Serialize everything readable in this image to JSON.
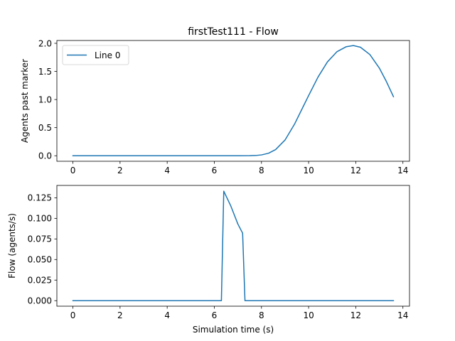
{
  "chart_data": [
    {
      "type": "line",
      "title": "firstTest111 - Flow",
      "xlabel": "",
      "ylabel": "Agents past marker",
      "xlim": [
        -0.68,
        14.28
      ],
      "ylim": [
        -0.098,
        2.05
      ],
      "xticks": [
        0,
        2,
        4,
        6,
        8,
        10,
        12,
        14
      ],
      "yticks": [
        0.0,
        0.5,
        1.0,
        1.5,
        2.0
      ],
      "xtick_labels": [
        "0",
        "2",
        "4",
        "6",
        "8",
        "10",
        "12",
        "14"
      ],
      "ytick_labels": [
        "0.0",
        "0.5",
        "1.0",
        "1.5",
        "2.0"
      ],
      "grid": false,
      "legend": {
        "position": "top-left",
        "entries": [
          "Line 0"
        ]
      },
      "series": [
        {
          "name": "Line 0",
          "color": "#1f77b4",
          "x": [
            0,
            1,
            2,
            3,
            4,
            5,
            6,
            6.4,
            7,
            7.5,
            7.8,
            8.0,
            8.3,
            8.6,
            9.0,
            9.4,
            9.8,
            10.0,
            10.4,
            10.8,
            11.2,
            11.6,
            11.9,
            12.2,
            12.6,
            13.0,
            13.3,
            13.6
          ],
          "y": [
            0,
            0,
            0,
            0,
            0,
            0,
            0,
            0,
            0,
            0.002,
            0.007,
            0.015,
            0.045,
            0.11,
            0.28,
            0.56,
            0.9,
            1.07,
            1.4,
            1.67,
            1.85,
            1.94,
            1.96,
            1.93,
            1.8,
            1.56,
            1.32,
            1.05
          ]
        }
      ]
    },
    {
      "type": "line",
      "title": "",
      "xlabel": "Simulation time (s)",
      "ylabel": "Flow (agents/s)",
      "xlim": [
        -0.68,
        14.28
      ],
      "ylim": [
        -0.0067,
        0.14
      ],
      "xticks": [
        0,
        2,
        4,
        6,
        8,
        10,
        12,
        14
      ],
      "yticks": [
        0.0,
        0.025,
        0.05,
        0.075,
        0.1,
        0.125
      ],
      "xtick_labels": [
        "0",
        "2",
        "4",
        "6",
        "8",
        "10",
        "12",
        "14"
      ],
      "ytick_labels": [
        "0.000",
        "0.025",
        "0.050",
        "0.075",
        "0.100",
        "0.125"
      ],
      "grid": false,
      "series": [
        {
          "color": "#1f77b4",
          "x": [
            0,
            6.3,
            6.4,
            6.7,
            7.0,
            7.2,
            7.3,
            13.6
          ],
          "y": [
            0,
            0,
            0.133,
            0.115,
            0.093,
            0.082,
            0,
            0
          ]
        }
      ]
    }
  ]
}
